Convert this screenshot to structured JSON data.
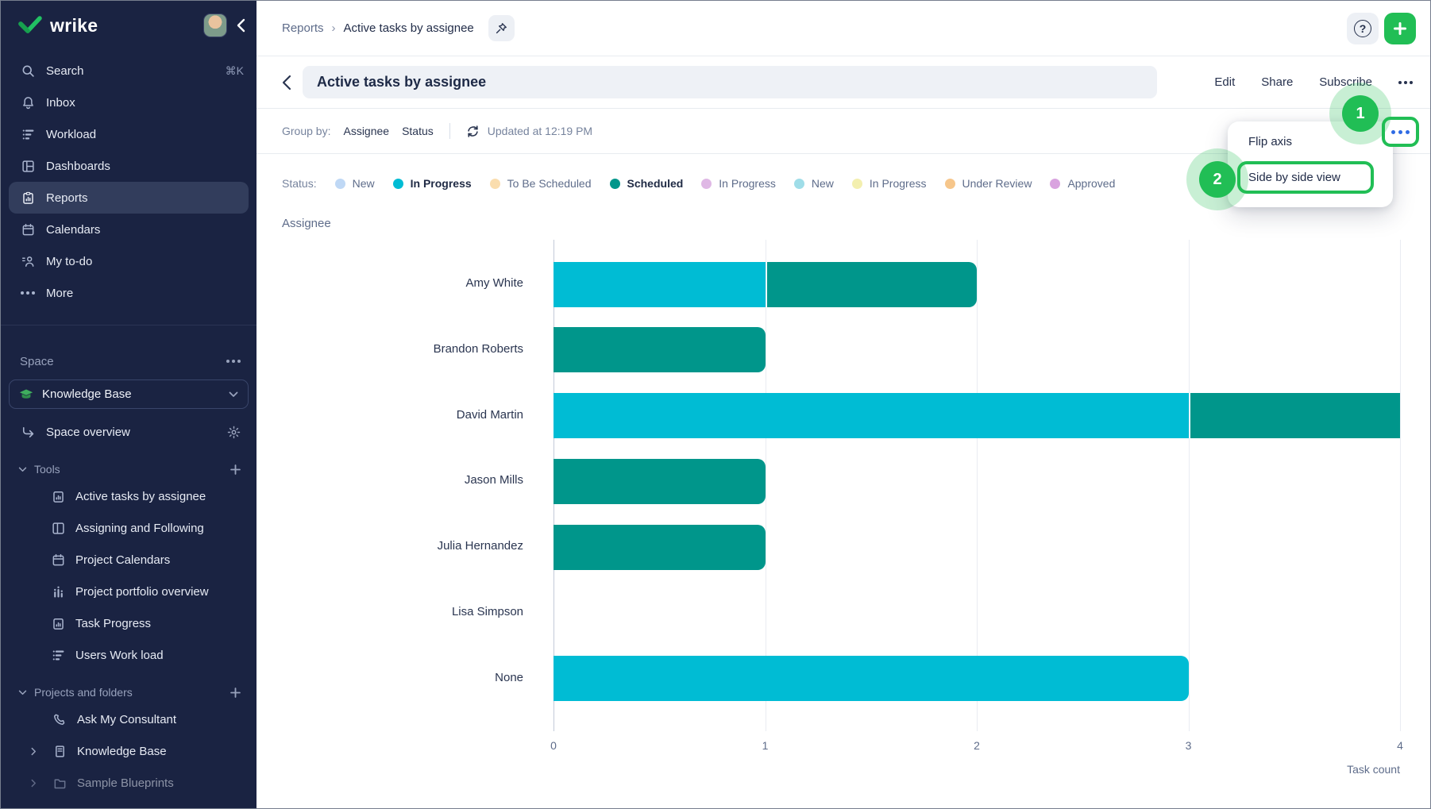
{
  "colors": {
    "accent_green": "#21be55",
    "menu_dots_blue": "#2f6be4",
    "sidebar_bg": "#1a2342",
    "bar_in_progress": "#00bcd4",
    "bar_scheduled": "#00968b"
  },
  "sidebar": {
    "brand": "wrike",
    "nav": [
      {
        "icon": "search",
        "label": "Search",
        "shortcut": "⌘K"
      },
      {
        "icon": "bell",
        "label": "Inbox"
      },
      {
        "icon": "workload",
        "label": "Workload"
      },
      {
        "icon": "dashboards",
        "label": "Dashboards"
      },
      {
        "icon": "report-clipboard",
        "label": "Reports",
        "selected": true
      },
      {
        "icon": "calendar",
        "label": "Calendars"
      },
      {
        "icon": "person-list",
        "label": "My to-do"
      },
      {
        "icon": "ellipsis",
        "label": "More"
      }
    ],
    "space": {
      "section_label": "Space",
      "name": "Knowledge Base",
      "overview_label": "Space overview",
      "tools_label": "Tools",
      "tools": [
        {
          "icon": "report-clipboard",
          "label": "Active tasks by assignee"
        },
        {
          "icon": "dashboards",
          "label": "Assigning and Following"
        },
        {
          "icon": "calendar",
          "label": "Project Calendars"
        },
        {
          "icon": "portfolio-chart",
          "label": "Project portfolio overview"
        },
        {
          "icon": "report-clipboard",
          "label": "Task Progress"
        },
        {
          "icon": "workload",
          "label": "Users Work load"
        }
      ],
      "projects_label": "Projects and folders",
      "projects": [
        {
          "icon": "phone",
          "label": "Ask My Consultant",
          "chevron": false
        },
        {
          "icon": "document",
          "label": "Knowledge Base",
          "chevron": true
        },
        {
          "icon": "folder",
          "label": "Sample Blueprints",
          "chevron": true
        }
      ]
    }
  },
  "header": {
    "breadcrumb": {
      "parent": "Reports",
      "separator": "›",
      "current": "Active tasks by assignee"
    },
    "help_glyph": "?",
    "title": "Active tasks by assignee",
    "actions": {
      "edit": "Edit",
      "share": "Share",
      "subscribe": "Subscribe"
    }
  },
  "toolbar": {
    "group_by_label": "Group by:",
    "group_by_values": [
      "Assignee",
      "Status"
    ],
    "updated": "Updated at 12:19 PM"
  },
  "legend": {
    "label": "Status:",
    "items": [
      {
        "label": "New",
        "color": "#bfd8f5",
        "bold": false
      },
      {
        "label": "In Progress",
        "color": "#00bcd4",
        "bold": true
      },
      {
        "label": "To Be Scheduled",
        "color": "#faddae",
        "bold": false
      },
      {
        "label": "Scheduled",
        "color": "#00968b",
        "bold": true
      },
      {
        "label": "In Progress",
        "color": "#dfb8e5",
        "bold": false
      },
      {
        "label": "New",
        "color": "#9fdde8",
        "bold": false
      },
      {
        "label": "In Progress",
        "color": "#f3efaf",
        "bold": false
      },
      {
        "label": "Under Review",
        "color": "#f6c68b",
        "bold": false
      },
      {
        "label": "Approved",
        "color": "#d9a3df",
        "bold": false
      }
    ]
  },
  "menu": {
    "items": [
      "Flip axis",
      "Side by side view"
    ],
    "highlighted": "Side by side view",
    "steps": [
      "1",
      "2"
    ]
  },
  "chart_data": {
    "type": "bar",
    "orientation": "horizontal",
    "stacked": true,
    "categories": [
      "Amy White",
      "Brandon Roberts",
      "David Martin",
      "Jason Mills",
      "Julia Hernandez",
      "Lisa Simpson",
      "None"
    ],
    "series": [
      {
        "name": "In Progress",
        "color": "#00bcd4",
        "values": [
          1,
          0,
          3,
          0,
          0,
          0,
          3
        ]
      },
      {
        "name": "Scheduled",
        "color": "#00968b",
        "values": [
          1,
          1,
          1,
          1,
          1,
          0,
          0
        ]
      }
    ],
    "title": "Active tasks by assignee",
    "xlabel": "Task count",
    "ylabel": "Assignee",
    "xlim": [
      0,
      4
    ],
    "xticks": [
      0,
      1,
      2,
      3,
      4
    ],
    "grid": true,
    "legend_position": "top"
  }
}
